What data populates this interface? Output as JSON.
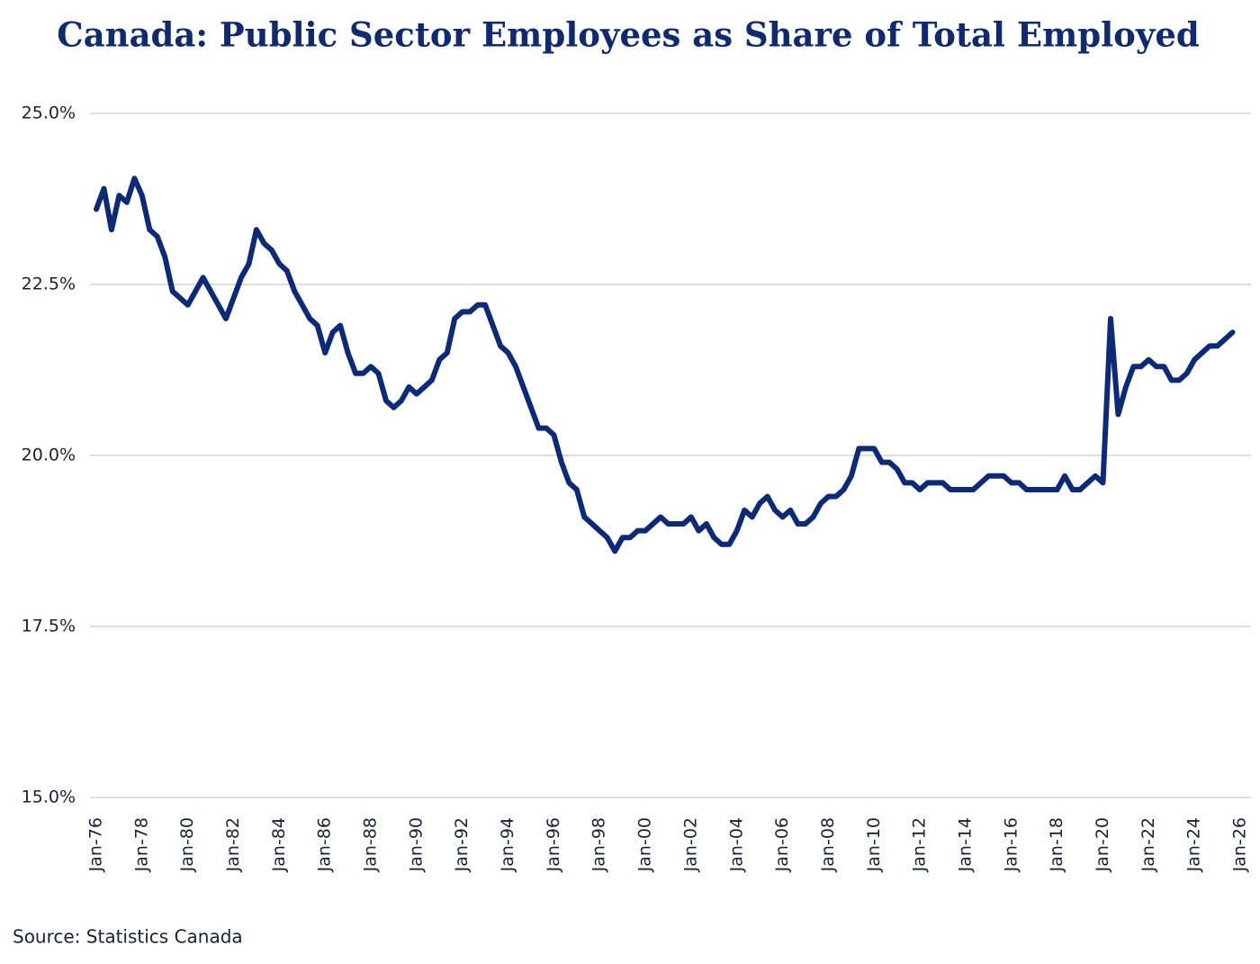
{
  "chart_data": {
    "type": "line",
    "title": "Canada: Public Sector Employees as Share of Total Employed",
    "source": "Source: Statistics Canada",
    "categories": [
      "Jan-76",
      null,
      null,
      null,
      null,
      null,
      "Jan-78",
      null,
      null,
      null,
      null,
      null,
      "Jan-80",
      null,
      null,
      null,
      null,
      null,
      "Jan-82",
      null,
      null,
      null,
      null,
      null,
      "Jan-84",
      null,
      null,
      null,
      null,
      null,
      "Jan-86",
      null,
      null,
      null,
      null,
      null,
      "Jan-88",
      null,
      null,
      null,
      null,
      null,
      "Jan-90",
      null,
      null,
      null,
      null,
      null,
      "Jan-92",
      null,
      null,
      null,
      null,
      null,
      "Jan-94",
      null,
      null,
      null,
      null,
      null,
      "Jan-96",
      null,
      null,
      null,
      null,
      null,
      "Jan-98",
      null,
      null,
      null,
      null,
      null,
      "Jan-00",
      null,
      null,
      null,
      null,
      null,
      "Jan-02",
      null,
      null,
      null,
      null,
      null,
      "Jan-04",
      null,
      null,
      null,
      null,
      null,
      "Jan-06",
      null,
      null,
      null,
      null,
      null,
      "Jan-08",
      null,
      null,
      null,
      null,
      null,
      "Jan-10",
      null,
      null,
      null,
      null,
      null,
      "Jan-12",
      null,
      null,
      null,
      null,
      null,
      "Jan-14",
      null,
      null,
      null,
      null,
      null,
      "Jan-16",
      null,
      null,
      null,
      null,
      null,
      "Jan-18",
      null,
      null,
      null,
      null,
      null,
      "Jan-20",
      null,
      null,
      null,
      null,
      null,
      "Jan-22",
      null,
      null,
      null,
      null,
      null,
      "Jan-24",
      null,
      null,
      null,
      null,
      null,
      "Jan-26"
    ],
    "series": [
      {
        "color": "#0d2a7a",
        "values": [
          23.6,
          23.9,
          23.3,
          23.8,
          23.7,
          24.05,
          23.8,
          23.3,
          23.2,
          22.9,
          22.4,
          22.3,
          22.2,
          22.4,
          22.6,
          22.4,
          22.2,
          22.0,
          22.3,
          22.6,
          22.8,
          23.3,
          23.1,
          23.0,
          22.8,
          22.7,
          22.4,
          22.2,
          22.0,
          21.9,
          21.5,
          21.8,
          21.9,
          21.5,
          21.2,
          21.2,
          21.3,
          21.2,
          20.8,
          20.7,
          20.8,
          21.0,
          20.9,
          21.0,
          21.1,
          21.4,
          21.5,
          22.0,
          22.1,
          22.1,
          22.2,
          22.2,
          21.9,
          21.6,
          21.5,
          21.3,
          21.0,
          20.7,
          20.4,
          20.4,
          20.3,
          19.9,
          19.6,
          19.5,
          19.1,
          19.0,
          18.9,
          18.8,
          18.6,
          18.8,
          18.8,
          18.9,
          18.9,
          19.0,
          19.1,
          19.0,
          19.0,
          19.0,
          19.1,
          18.9,
          19.0,
          18.8,
          18.7,
          18.7,
          18.9,
          19.2,
          19.1,
          19.3,
          19.4,
          19.2,
          19.1,
          19.2,
          19.0,
          19.0,
          19.1,
          19.3,
          19.4,
          19.4,
          19.5,
          19.7,
          20.1,
          20.1,
          20.1,
          19.9,
          19.9,
          19.8,
          19.6,
          19.6,
          19.5,
          19.6,
          19.6,
          19.6,
          19.5,
          19.5,
          19.5,
          19.5,
          19.6,
          19.7,
          19.7,
          19.7,
          19.6,
          19.6,
          19.5,
          19.5,
          19.5,
          19.5,
          19.5,
          19.7,
          19.5,
          19.5,
          19.6,
          19.7,
          19.6,
          22.0,
          20.6,
          21.0,
          21.3,
          21.3,
          21.4,
          21.3,
          21.3,
          21.1,
          21.1,
          21.2,
          21.4,
          21.5,
          21.6,
          21.6,
          21.7,
          21.8,
          null
        ]
      }
    ],
    "ylim": [
      15,
      25
    ],
    "yticks": [
      {
        "value": 15,
        "label": "15.0%"
      },
      {
        "value": 17.5,
        "label": "17.5%"
      },
      {
        "value": 20,
        "label": "20.0%"
      },
      {
        "value": 22.5,
        "label": "22.5%"
      },
      {
        "value": 25,
        "label": "25.0%"
      }
    ],
    "grid": true
  }
}
